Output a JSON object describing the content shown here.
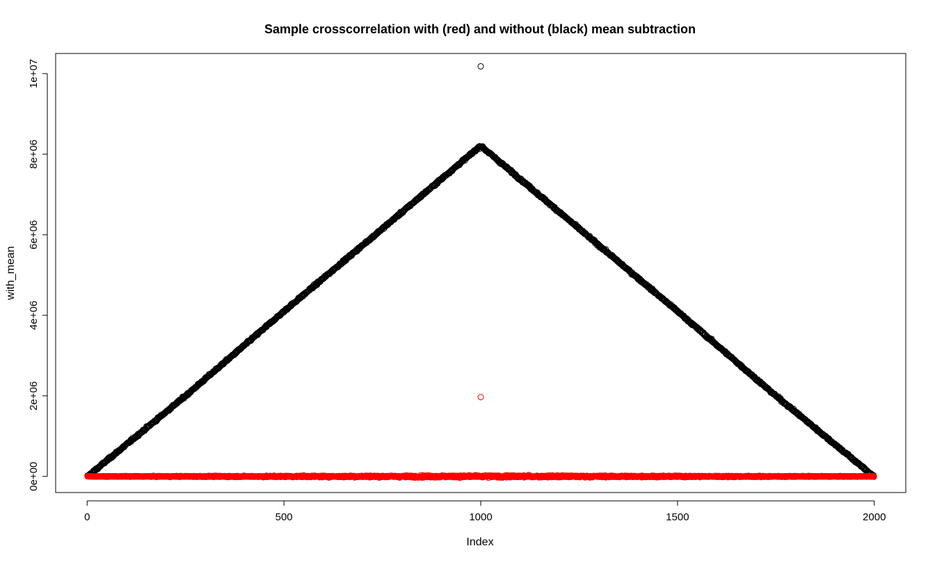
{
  "chart_data": {
    "type": "scatter",
    "title": "Sample crosscorrelation with (red) and without (black) mean subtraction",
    "xlabel": "Index",
    "ylabel": "with_mean",
    "xlim": [
      -80,
      2080
    ],
    "ylim": [
      -400000,
      10500000
    ],
    "x_ticks": [
      0,
      500,
      1000,
      1500,
      2000
    ],
    "x_tick_labels": [
      "0",
      "500",
      "1000",
      "1500",
      "2000"
    ],
    "y_ticks": [
      0,
      2000000,
      4000000,
      6000000,
      8000000,
      10000000
    ],
    "y_tick_labels": [
      "0e+00",
      "2e+06",
      "4e+06",
      "6e+06",
      "8e+06",
      "1e+07"
    ],
    "grid": false,
    "legend": "none",
    "n_points": 1999,
    "series": [
      {
        "color": "#000000",
        "marker": "open-circle",
        "shape": "triangle",
        "x": [
          1,
          250,
          500,
          750,
          999,
          1000,
          1001,
          1250,
          1500,
          1750,
          1999
        ],
        "y": [
          0,
          2000000,
          4100000,
          6150000,
          8200000,
          10180000,
          8200000,
          6150000,
          4100000,
          2000000,
          0
        ],
        "noise_amplitude": 60000,
        "outliers": [
          {
            "x": 1000,
            "y": 10180000
          }
        ]
      },
      {
        "color": "#ff0000",
        "marker": "open-circle",
        "shape": "flat",
        "x": [
          1,
          1999
        ],
        "y": [
          0,
          0
        ],
        "noise_amplitude": 60000,
        "outliers": [
          {
            "x": 1000,
            "y": 1970000
          }
        ]
      }
    ]
  }
}
